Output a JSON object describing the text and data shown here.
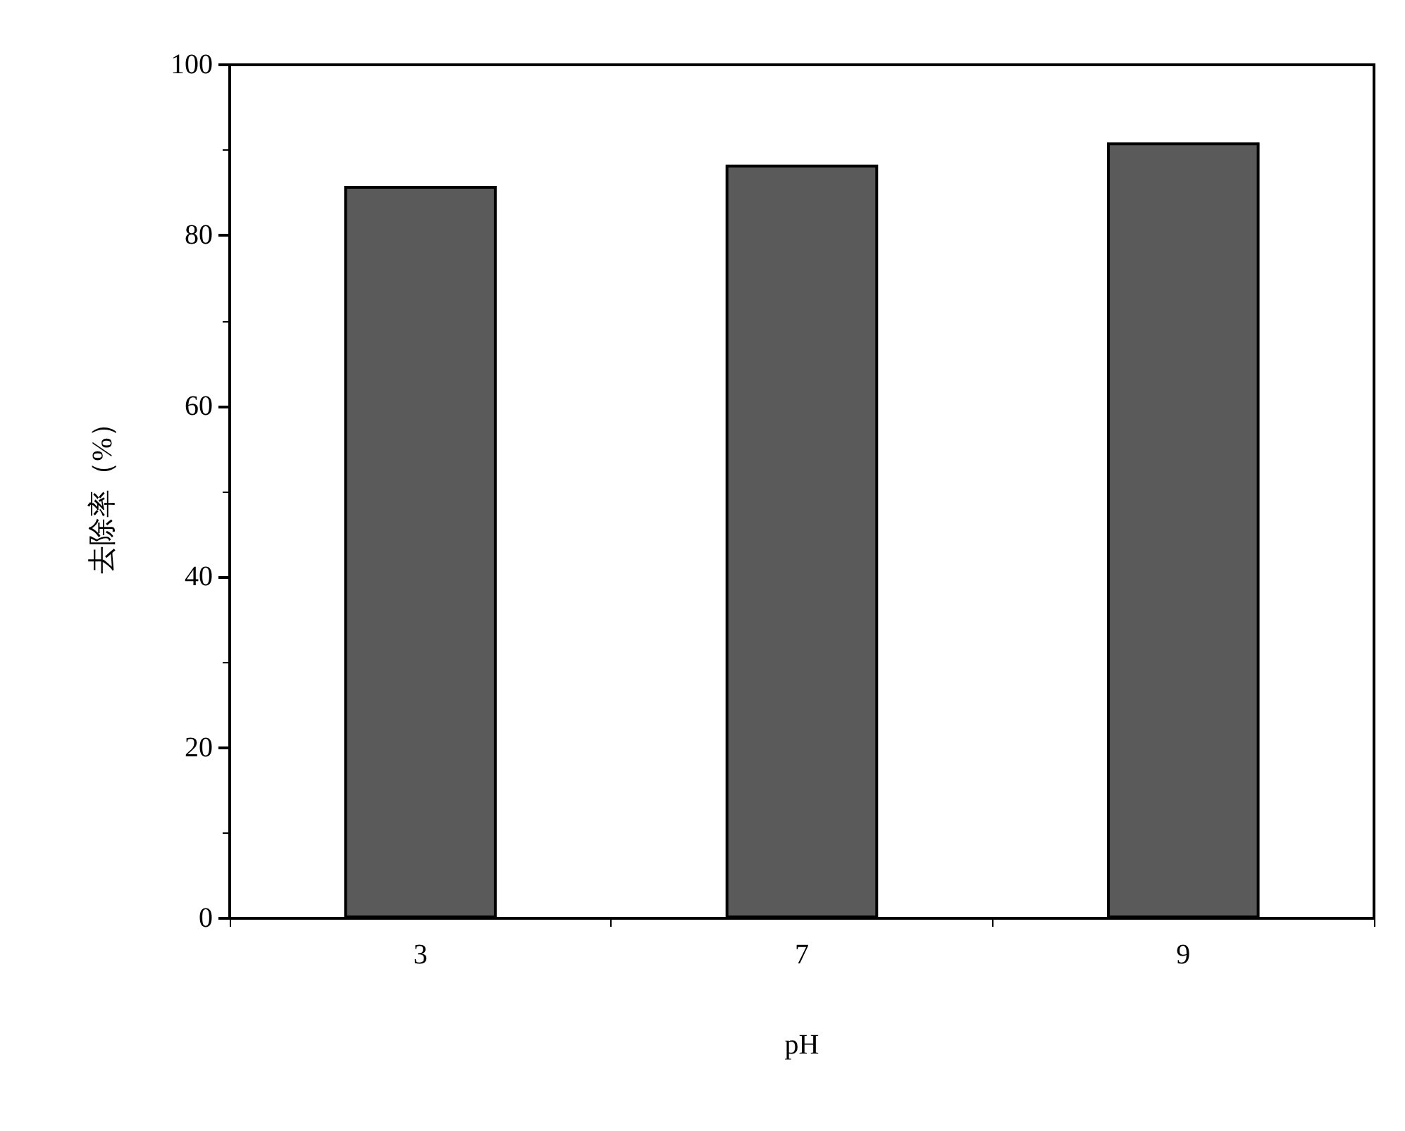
{
  "chart_data": {
    "type": "bar",
    "xlabel": "pH",
    "ylabel": "去除率（%）",
    "categories": [
      "3",
      "7",
      "9"
    ],
    "values": [
      85.8,
      88.3,
      90.9
    ],
    "color": "#5a5a5a",
    "ylim": [
      0,
      100
    ],
    "yticks": [
      0,
      20,
      40,
      60,
      80,
      100
    ],
    "grid": false
  }
}
